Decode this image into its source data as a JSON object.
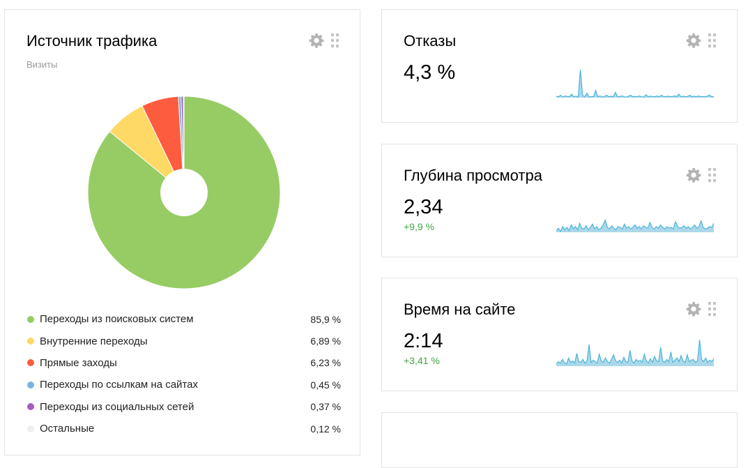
{
  "traffic": {
    "title": "Источник трафика",
    "subtitle": "Визиты",
    "chart_data": {
      "type": "pie",
      "series": [
        {
          "name": "Переходы из поисковых систем",
          "value": 85.9,
          "label": "85,9 %",
          "color": "#97cc64"
        },
        {
          "name": "Внутренние переходы",
          "value": 6.89,
          "label": "6,89 %",
          "color": "#ffd965"
        },
        {
          "name": "Прямые заходы",
          "value": 6.23,
          "label": "6,23 %",
          "color": "#fe5c3f"
        },
        {
          "name": "Переходы по ссылкам на сайтах",
          "value": 0.45,
          "label": "0,45 %",
          "color": "#78b4e0"
        },
        {
          "name": "Переходы из социальных сетей",
          "value": 0.37,
          "label": "0,37 %",
          "color": "#a55bbf"
        },
        {
          "name": "Остальные",
          "value": 0.12,
          "label": "0,12 %",
          "color": "#eeeeee"
        }
      ]
    }
  },
  "bounce": {
    "title": "Отказы",
    "value": "4,3 %",
    "chart_data": {
      "type": "area",
      "values": [
        0.5,
        0.3,
        0.8,
        0.2,
        0.6,
        0.4,
        0.3,
        1.2,
        0.3,
        0.5,
        0.2,
        9.5,
        0.8,
        0.3,
        1.5,
        0.2,
        0.4,
        0.3,
        2.5,
        0.3,
        0.6,
        0.2,
        0.4,
        0.8,
        0.3,
        0.5,
        0.3,
        1.8,
        0.3,
        0.4,
        0.6,
        0.3,
        0.2,
        0.5,
        0.8,
        0.3,
        0.4,
        0.3,
        0.6,
        0.3,
        0.2,
        1.0,
        0.3,
        0.5,
        0.4,
        0.3,
        0.6,
        0.3,
        0.8,
        0.4,
        0.3,
        0.5,
        0.3,
        0.4,
        0.6,
        0.3,
        1.2,
        0.3,
        0.5,
        0.3,
        0.4,
        0.8,
        0.3,
        0.5,
        0.3,
        0.6,
        0.3,
        0.4,
        0.3,
        0.5,
        0.9,
        0.3,
        0.4
      ],
      "ylim": [
        0,
        10
      ]
    }
  },
  "depth": {
    "title": "Глубина просмотра",
    "value": "2,34",
    "delta": "+9,9 %",
    "chart_data": {
      "type": "area",
      "values": [
        2.1,
        2.4,
        2.0,
        2.6,
        2.2,
        2.5,
        2.1,
        2.8,
        2.3,
        2.6,
        2.2,
        3.0,
        2.4,
        2.3,
        2.7,
        2.2,
        2.5,
        2.9,
        2.3,
        2.6,
        2.2,
        2.4,
        2.8,
        3.4,
        2.5,
        2.3,
        2.7,
        2.4,
        2.2,
        2.6,
        2.5,
        2.3,
        2.9,
        2.4,
        2.6,
        2.3,
        2.5,
        2.8,
        2.4,
        2.6,
        2.3,
        2.7,
        2.5,
        2.4,
        3.1,
        2.5,
        2.3,
        2.6,
        2.4,
        2.8,
        2.5,
        2.3,
        2.6,
        2.4,
        2.5,
        2.3,
        3.2,
        2.6,
        2.4,
        2.5,
        2.7,
        2.4,
        2.6,
        2.3,
        2.5,
        2.8,
        2.4,
        2.6,
        3.3,
        2.5,
        2.3,
        2.4,
        2.6,
        2.5,
        3.0
      ],
      "ylim": [
        1.9,
        5.5
      ]
    }
  },
  "time": {
    "title": "Время на сайте",
    "value": "2:14",
    "delta": "+3,41 %",
    "chart_data": {
      "type": "area",
      "values": [
        1.8,
        2.1,
        1.9,
        2.4,
        2.0,
        1.8,
        2.6,
        2.0,
        2.2,
        1.9,
        3.2,
        2.1,
        2.0,
        2.4,
        1.9,
        2.2,
        4.4,
        2.0,
        2.3,
        2.1,
        1.9,
        3.1,
        2.2,
        2.0,
        2.6,
        2.1,
        1.9,
        2.4,
        3.0,
        2.2,
        2.0,
        2.3,
        1.9,
        2.7,
        2.1,
        2.0,
        3.6,
        2.2,
        1.9,
        2.4,
        2.1,
        2.3,
        2.0,
        3.1,
        2.2,
        1.9,
        2.5,
        2.0,
        2.8,
        2.2,
        2.1,
        4.0,
        2.2,
        2.0,
        2.4,
        2.1,
        3.4,
        2.0,
        2.3,
        2.6,
        2.1,
        2.9,
        2.2,
        2.0,
        3.0,
        2.1,
        2.3,
        2.4,
        2.0,
        2.2,
        5.0,
        2.4,
        2.1,
        2.6,
        2.0,
        2.3,
        2.1,
        2.5
      ],
      "ylim": [
        1.5,
        5.4
      ]
    }
  },
  "icons": {
    "gear": "gear-icon",
    "drag": "drag-handle-icon"
  },
  "colors": {
    "positive": "#3fa743",
    "spark_line": "#4bb4d9",
    "spark_fill": "#add8ea"
  }
}
